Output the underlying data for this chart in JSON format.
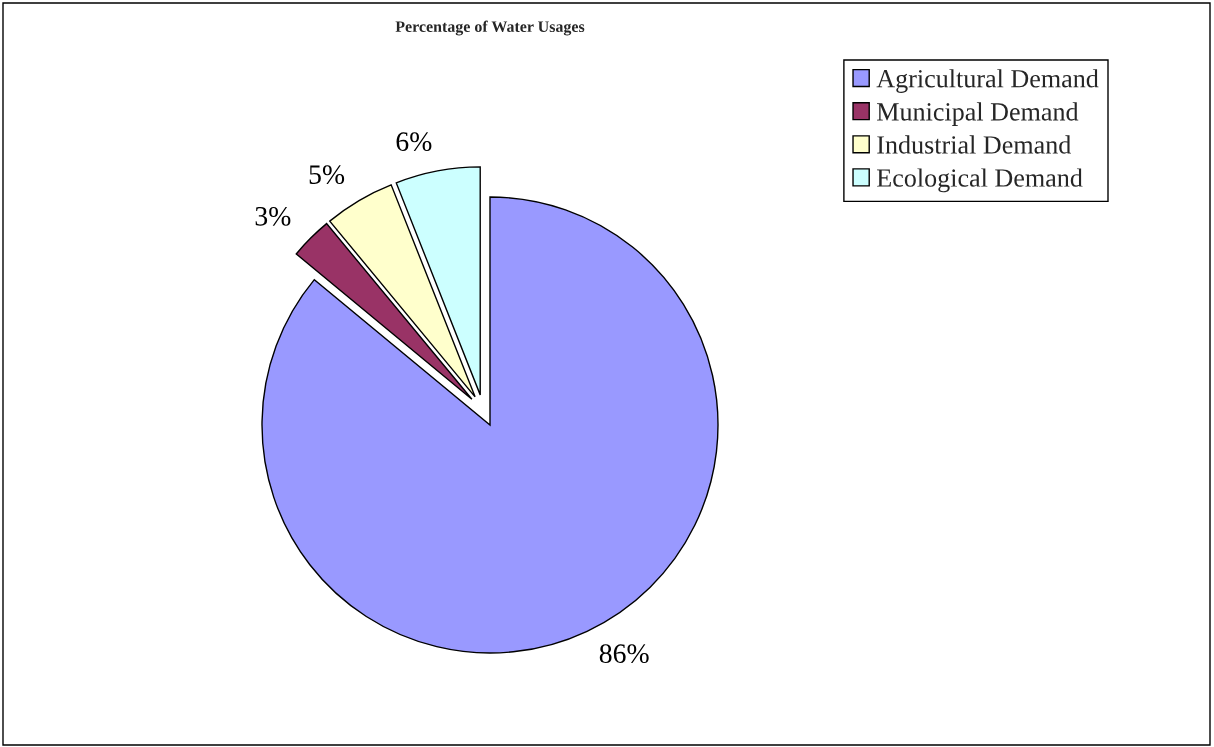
{
  "chart_data": {
    "type": "pie",
    "title": "Percentage of Water Usages",
    "categories": [
      "Agricultural Demand",
      "Municipal Demand",
      "Industrial Demand",
      "Ecological Demand"
    ],
    "values": [
      86,
      3,
      5,
      6
    ],
    "colors": [
      "#9999ff",
      "#993366",
      "#ffffcc",
      "#ccffff"
    ],
    "value_labels": [
      "86%",
      "3%",
      "5%",
      "6%"
    ],
    "legend": "top right"
  }
}
